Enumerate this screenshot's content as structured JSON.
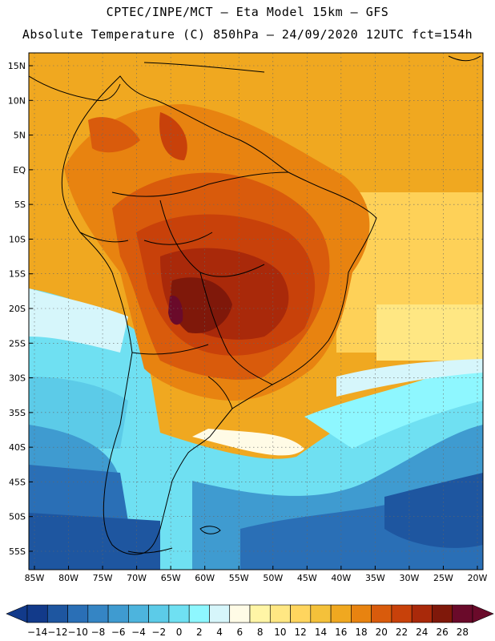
{
  "header": {
    "line1": "CPTEC/INPE/MCT –  Eta Model 15km – GFS",
    "line2": "Absolute Temperature (C) 850hPa – 24/09/2020 12UTC fct=154h"
  },
  "map": {
    "lon_labels": [
      "85W",
      "80W",
      "75W",
      "70W",
      "65W",
      "60W",
      "55W",
      "50W",
      "45W",
      "40W",
      "35W",
      "30W",
      "25W",
      "20W"
    ],
    "lat_labels": [
      "15N",
      "10N",
      "5N",
      "EQ",
      "5S",
      "10S",
      "15S",
      "20S",
      "25S",
      "30S",
      "35S",
      "40S",
      "45S",
      "50S",
      "55S"
    ],
    "grid": "dotted"
  },
  "colorbar": {
    "labels": [
      "-14",
      "-12",
      "-10",
      "-8",
      "-6",
      "-4",
      "-2",
      "0",
      "2",
      "4",
      "6",
      "8",
      "10",
      "12",
      "14",
      "16",
      "18",
      "20",
      "22",
      "24",
      "26",
      "28"
    ],
    "colors": [
      "#123a8a",
      "#1e56a0",
      "#2a6fb6",
      "#3585c4",
      "#3f9bd0",
      "#4db4dd",
      "#5ccbe8",
      "#6fe0f2",
      "#8ef7ff",
      "#d6f6fb",
      "#fffbe6",
      "#fff5a6",
      "#ffe783",
      "#ffd55e",
      "#f4c13a",
      "#f0a820",
      "#e88310",
      "#d95b0c",
      "#c8410a",
      "#a9290a",
      "#7f180a",
      "#6a0a2a"
    ]
  }
}
